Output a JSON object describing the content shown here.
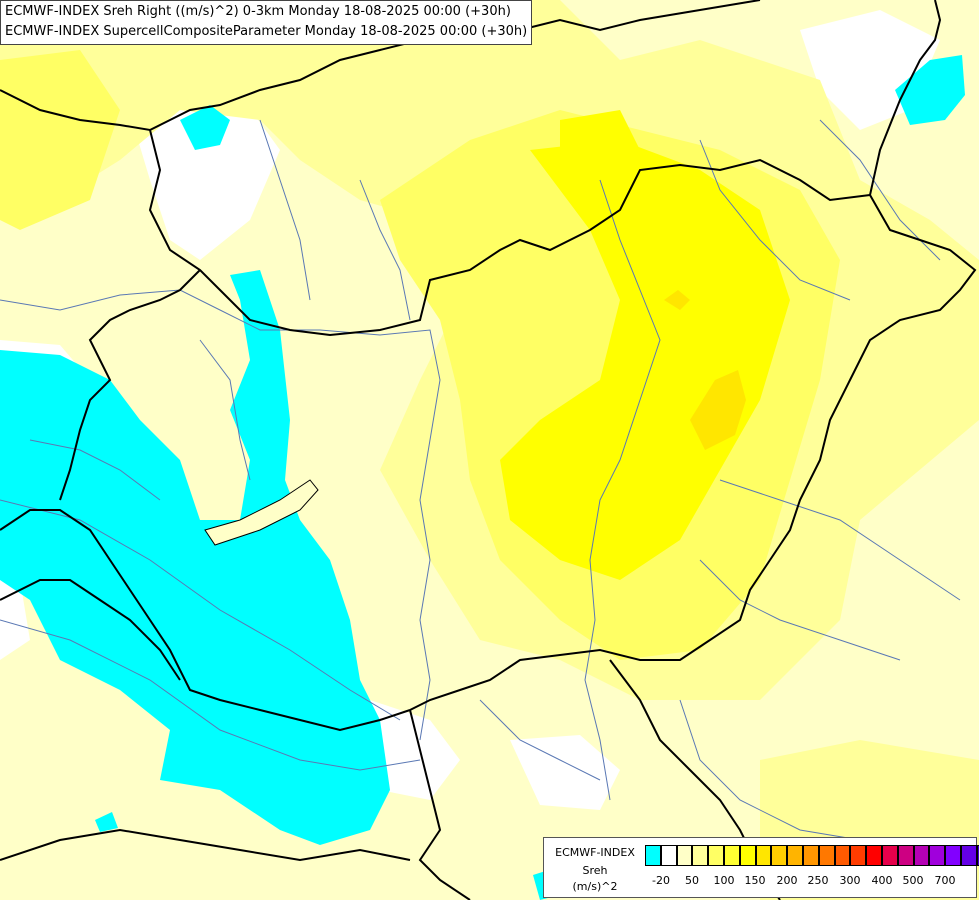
{
  "title": {
    "line1": "ECMWF-INDEX Sreh Right ((m/s)^2) 0-3km Monday 18-08-2025 00:00 (+30h)",
    "line2": "ECMWF-INDEX SupercellCompositeParameter Monday 18-08-2025 00:00 (+30h)"
  },
  "legend": {
    "model": "ECMWF-INDEX",
    "parameter": "Sreh",
    "unit": "(m/s)^2",
    "colors": [
      "#00ffff",
      "#ffffff",
      "#ffffc8",
      "#ffff9a",
      "#ffff64",
      "#ffff32",
      "#ffff00",
      "#ffe600",
      "#ffcd00",
      "#ffb400",
      "#ff9600",
      "#ff7800",
      "#ff5a00",
      "#ff3c00",
      "#ff0000",
      "#e6004b",
      "#cd0082",
      "#b400b4",
      "#a000dc",
      "#8200ff",
      "#6400e6",
      "#4600c8",
      "#1e00a0",
      "#000080"
    ],
    "ticks": [
      "-20",
      "50",
      "100",
      "150",
      "200",
      "250",
      "300",
      "400",
      "500",
      "700"
    ]
  },
  "palette": {
    "cyan": "#00ffff",
    "white": "#ffffff",
    "pale": "#ffffc8",
    "light": "#ffff9a",
    "mid": "#ffff64",
    "yellow": "#ffff00",
    "gold": "#ffe600",
    "border": "#000000",
    "river": "#5a78b4"
  }
}
